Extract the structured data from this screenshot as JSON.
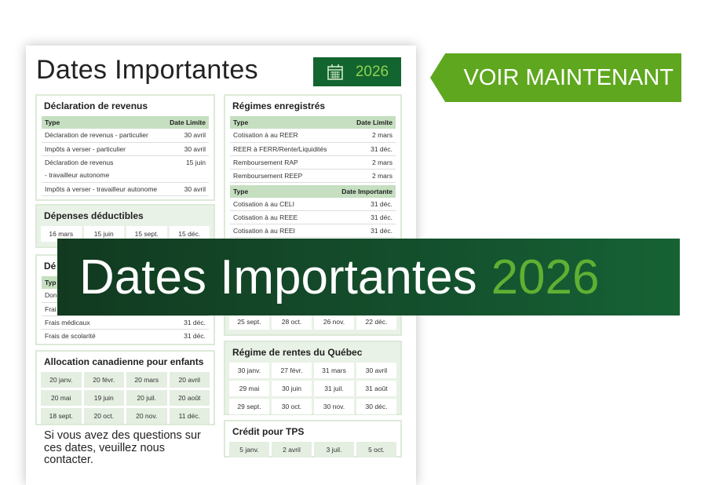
{
  "header": {
    "title": "Dates Importantes",
    "year": "2026"
  },
  "cta": {
    "label": "VOIR MAINTENANT"
  },
  "banner": {
    "title": "Dates Importantes",
    "year": "2026"
  },
  "declaration": {
    "title": "Déclaration de revenus",
    "columns": [
      "Type",
      "Date Limite"
    ],
    "rows": [
      [
        "Déclaration de revenus - particulier",
        "30 avril"
      ],
      [
        "Impôts à verser - particulier",
        "30 avril"
      ],
      [
        "Déclaration de revenus",
        "15 juin"
      ],
      [
        "- travailleur autonome",
        ""
      ],
      [
        "Impôts à verser - travailleur autonome",
        "30 avril"
      ]
    ]
  },
  "depenses": {
    "title": "Dépenses déductibles",
    "dates": [
      "16 mars",
      "15 juin",
      "15 sept.",
      "15 déc."
    ]
  },
  "depenses2": {
    "title": "Dé",
    "columns": [
      "Typ",
      ""
    ],
    "rows": [
      [
        "Don",
        ""
      ],
      [
        "Frai",
        ""
      ],
      [
        "Frais médicaux",
        "31 déc."
      ],
      [
        "Frais de scolarité",
        "31 déc."
      ]
    ]
  },
  "allocation": {
    "title": "Allocation canadienne pour enfants",
    "dates": [
      "20 janv.",
      "20 févr.",
      "20 mars",
      "20 avril",
      "20 mai",
      "19 juin",
      "20 juil.",
      "20 août",
      "18 sept.",
      "20 oct.",
      "20 nov.",
      "11 déc."
    ]
  },
  "footer": {
    "text": "Si vous avez des questions sur ces dates, veuillez nous contacter."
  },
  "regimes": {
    "title": "Régimes enregistrés",
    "columns": [
      "Type",
      "Date Limite"
    ],
    "rows": [
      [
        "Cotisation à au REER",
        "2 mars"
      ],
      [
        "REER à FERR/Rente/Liquidités",
        "31 déc."
      ],
      [
        "Remboursement RAP",
        "2 mars"
      ],
      [
        "Remboursement REEP",
        "2 mars"
      ]
    ],
    "columns2": [
      "Type",
      "Date Importante"
    ],
    "rows2": [
      [
        "Cotisation à au CELI",
        "31 déc."
      ],
      [
        "Cotisation à au REEE",
        "31 déc."
      ],
      [
        "Cotisation à au REEI",
        "31 déc."
      ]
    ]
  },
  "hidden_card": {
    "dates": [
      "25 sept.",
      "28 oct.",
      "26 nov.",
      "22 déc."
    ]
  },
  "rrq": {
    "title": "Régime de rentes du Québec",
    "dates": [
      "30 janv.",
      "27 févr.",
      "31 mars",
      "30 avril",
      "29 mai",
      "30 juin",
      "31 juil.",
      "31 août",
      "29 sept.",
      "30 oct.",
      "30 nov.",
      "30 déc."
    ]
  },
  "tps": {
    "title": "Crédit pour TPS",
    "dates": [
      "5 janv.",
      "2 avril",
      "3 juil.",
      "5 oct."
    ]
  }
}
